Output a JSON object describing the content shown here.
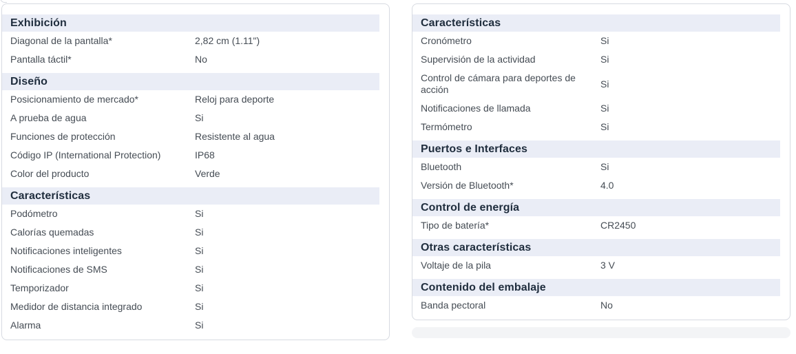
{
  "colors": {
    "section_header_bg": "#eaedf6",
    "section_header_text": "#1f2d3d",
    "row_text": "#454c54",
    "card_border": "#d7dae1",
    "peek_bar_bg": "#f3f4f6"
  },
  "columns": [
    {
      "id": "left",
      "sections": [
        {
          "title": "Exhibición",
          "rows": [
            {
              "label": "Diagonal de la pantalla*",
              "value": "2,82 cm (1.11\")"
            },
            {
              "label": "Pantalla táctil*",
              "value": "No"
            }
          ]
        },
        {
          "title": "Diseño",
          "rows": [
            {
              "label": "Posicionamiento de mercado*",
              "value": "Reloj para deporte"
            },
            {
              "label": "A prueba de agua",
              "value": "Si"
            },
            {
              "label": "Funciones de protección",
              "value": "Resistente al agua"
            },
            {
              "label": "Código IP (International Protection)",
              "value": "IP68"
            },
            {
              "label": "Color del producto",
              "value": "Verde"
            }
          ]
        },
        {
          "title": "Características",
          "rows": [
            {
              "label": "Podómetro",
              "value": "Si"
            },
            {
              "label": "Calorías quemadas",
              "value": "Si"
            },
            {
              "label": "Notificaciones inteligentes",
              "value": "Si"
            },
            {
              "label": "Notificaciones de SMS",
              "value": "Si"
            },
            {
              "label": "Temporizador",
              "value": "Si"
            },
            {
              "label": "Medidor de distancia integrado",
              "value": "Si"
            },
            {
              "label": "Alarma",
              "value": "Si"
            }
          ]
        }
      ]
    },
    {
      "id": "right",
      "sections": [
        {
          "title": "Características",
          "rows": [
            {
              "label": "Cronómetro",
              "value": "Si"
            },
            {
              "label": "Supervisión de la actividad",
              "value": "Si"
            },
            {
              "label": "Control de cámara para deportes de acción",
              "value": "Si"
            },
            {
              "label": "Notificaciones de llamada",
              "value": "Si"
            },
            {
              "label": "Termómetro",
              "value": "Si"
            }
          ]
        },
        {
          "title": "Puertos e Interfaces",
          "rows": [
            {
              "label": "Bluetooth",
              "value": "Si"
            },
            {
              "label": "Versión de Bluetooth*",
              "value": "4.0"
            }
          ]
        },
        {
          "title": "Control de energía",
          "rows": [
            {
              "label": "Tipo de batería*",
              "value": "CR2450"
            }
          ]
        },
        {
          "title": "Otras características",
          "rows": [
            {
              "label": "Voltaje de la pila",
              "value": "3 V"
            }
          ]
        },
        {
          "title": "Contenido del embalaje",
          "rows": [
            {
              "label": "Banda pectoral",
              "value": "No"
            }
          ]
        }
      ]
    }
  ]
}
